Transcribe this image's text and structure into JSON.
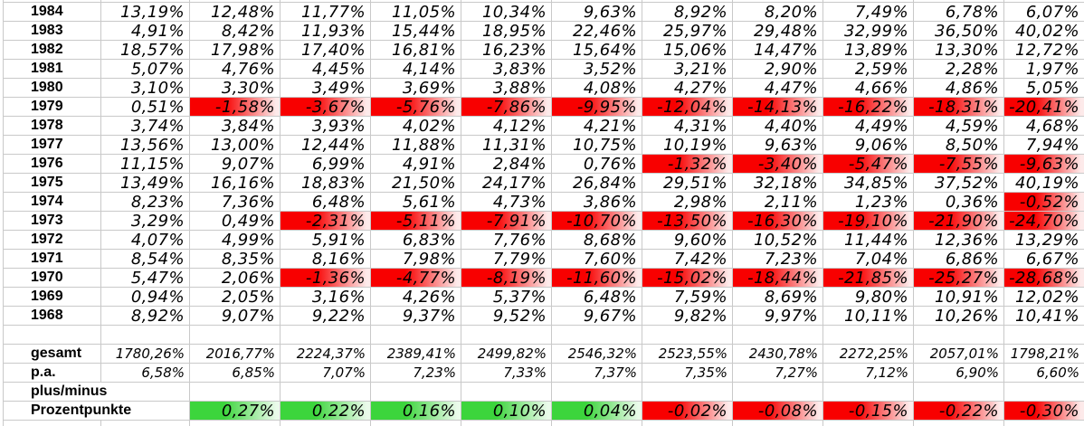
{
  "colors": {
    "gridline": "#C9C9C9",
    "background": "#FFFFFF",
    "text": "#000000",
    "negative_fill": "#F80000",
    "negative_fade": "#FDEAEA",
    "positive_fill": "#3CD53C",
    "positive_fade": "#EAFAEA"
  },
  "grid": {
    "column_count": 11,
    "year_rows": [
      {
        "year": "1984",
        "values": [
          "13,19%",
          "12,48%",
          "11,77%",
          "11,05%",
          "10,34%",
          "9,63%",
          "8,92%",
          "8,20%",
          "7,49%",
          "6,78%",
          "6,07%"
        ]
      },
      {
        "year": "1983",
        "values": [
          "4,91%",
          "8,42%",
          "11,93%",
          "15,44%",
          "18,95%",
          "22,46%",
          "25,97%",
          "29,48%",
          "32,99%",
          "36,50%",
          "40,02%"
        ]
      },
      {
        "year": "1982",
        "values": [
          "18,57%",
          "17,98%",
          "17,40%",
          "16,81%",
          "16,23%",
          "15,64%",
          "15,06%",
          "14,47%",
          "13,89%",
          "13,30%",
          "12,72%"
        ]
      },
      {
        "year": "1981",
        "values": [
          "5,07%",
          "4,76%",
          "4,45%",
          "4,14%",
          "3,83%",
          "3,52%",
          "3,21%",
          "2,90%",
          "2,59%",
          "2,28%",
          "1,97%"
        ]
      },
      {
        "year": "1980",
        "values": [
          "3,10%",
          "3,30%",
          "3,49%",
          "3,69%",
          "3,88%",
          "4,08%",
          "4,27%",
          "4,47%",
          "4,66%",
          "4,86%",
          "5,05%"
        ]
      },
      {
        "year": "1979",
        "values": [
          "0,51%",
          "-1,58%",
          "-3,67%",
          "-5,76%",
          "-7,86%",
          "-9,95%",
          "-12,04%",
          "-14,13%",
          "-16,22%",
          "-18,31%",
          "-20,41%"
        ]
      },
      {
        "year": "1978",
        "values": [
          "3,74%",
          "3,84%",
          "3,93%",
          "4,02%",
          "4,12%",
          "4,21%",
          "4,31%",
          "4,40%",
          "4,49%",
          "4,59%",
          "4,68%"
        ]
      },
      {
        "year": "1977",
        "values": [
          "13,56%",
          "13,00%",
          "12,44%",
          "11,88%",
          "11,31%",
          "10,75%",
          "10,19%",
          "9,63%",
          "9,06%",
          "8,50%",
          "7,94%"
        ]
      },
      {
        "year": "1976",
        "values": [
          "11,15%",
          "9,07%",
          "6,99%",
          "4,91%",
          "2,84%",
          "0,76%",
          "-1,32%",
          "-3,40%",
          "-5,47%",
          "-7,55%",
          "-9,63%"
        ]
      },
      {
        "year": "1975",
        "values": [
          "13,49%",
          "16,16%",
          "18,83%",
          "21,50%",
          "24,17%",
          "26,84%",
          "29,51%",
          "32,18%",
          "34,85%",
          "37,52%",
          "40,19%"
        ]
      },
      {
        "year": "1974",
        "values": [
          "8,23%",
          "7,36%",
          "6,48%",
          "5,61%",
          "4,73%",
          "3,86%",
          "2,98%",
          "2,11%",
          "1,23%",
          "0,36%",
          "-0,52%"
        ]
      },
      {
        "year": "1973",
        "values": [
          "3,29%",
          "0,49%",
          "-2,31%",
          "-5,11%",
          "-7,91%",
          "-10,70%",
          "-13,50%",
          "-16,30%",
          "-19,10%",
          "-21,90%",
          "-24,70%"
        ]
      },
      {
        "year": "1972",
        "values": [
          "4,07%",
          "4,99%",
          "5,91%",
          "6,83%",
          "7,76%",
          "8,68%",
          "9,60%",
          "10,52%",
          "11,44%",
          "12,36%",
          "13,29%"
        ]
      },
      {
        "year": "1971",
        "values": [
          "8,54%",
          "8,35%",
          "8,16%",
          "7,98%",
          "7,79%",
          "7,60%",
          "7,42%",
          "7,23%",
          "7,04%",
          "6,86%",
          "6,67%"
        ]
      },
      {
        "year": "1970",
        "values": [
          "5,47%",
          "2,06%",
          "-1,36%",
          "-4,77%",
          "-8,19%",
          "-11,60%",
          "-15,02%",
          "-18,44%",
          "-21,85%",
          "-25,27%",
          "-28,68%"
        ]
      },
      {
        "year": "1969",
        "values": [
          "0,94%",
          "2,05%",
          "3,16%",
          "4,26%",
          "5,37%",
          "6,48%",
          "7,59%",
          "8,69%",
          "9,80%",
          "10,91%",
          "12,02%"
        ]
      },
      {
        "year": "1968",
        "values": [
          "8,92%",
          "9,07%",
          "9,22%",
          "9,37%",
          "9,52%",
          "9,67%",
          "9,82%",
          "9,97%",
          "10,11%",
          "10,26%",
          "10,41%"
        ]
      }
    ],
    "summary_rows": [
      {
        "label": "gesamt",
        "values": [
          "1780,26%",
          "2016,77%",
          "2224,37%",
          "2389,41%",
          "2499,82%",
          "2546,32%",
          "2523,55%",
          "2430,78%",
          "2272,25%",
          "2057,01%",
          "1798,21%"
        ]
      },
      {
        "label": "p.a.",
        "values": [
          "6,58%",
          "6,85%",
          "7,07%",
          "7,23%",
          "7,33%",
          "7,37%",
          "7,35%",
          "7,27%",
          "7,12%",
          "6,90%",
          "6,60%"
        ]
      }
    ],
    "plus_minus_label": "plus/minus",
    "delta_row": {
      "label": "Prozentpunkte",
      "values": [
        "",
        "0,27%",
        "0,22%",
        "0,16%",
        "0,10%",
        "0,04%",
        "-0,02%",
        "-0,08%",
        "-0,15%",
        "-0,22%",
        "-0,30%"
      ]
    }
  }
}
